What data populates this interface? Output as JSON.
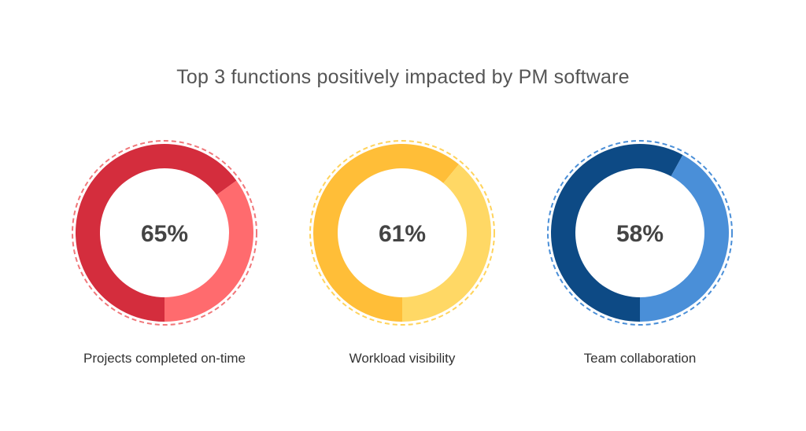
{
  "title": "Top 3 functions positively impacted by PM software",
  "chart_data": {
    "type": "pie",
    "title": "Top 3 functions positively impacted by PM software",
    "series": [
      {
        "name": "Projects completed on-time",
        "value": 65,
        "label": "65%",
        "colors": {
          "primary": "#d42d3d",
          "secondary": "#ff6b6e",
          "dashed": "#f0777a"
        }
      },
      {
        "name": "Workload visibility",
        "value": 61,
        "label": "61%",
        "colors": {
          "primary": "#ffbe38",
          "secondary": "#ffd865",
          "dashed": "#ffd35c"
        }
      },
      {
        "name": "Team collaboration",
        "value": 58,
        "label": "58%",
        "colors": {
          "primary": "#0d4a85",
          "secondary": "#4a8fd8",
          "dashed": "#4a8fd8"
        }
      }
    ]
  }
}
